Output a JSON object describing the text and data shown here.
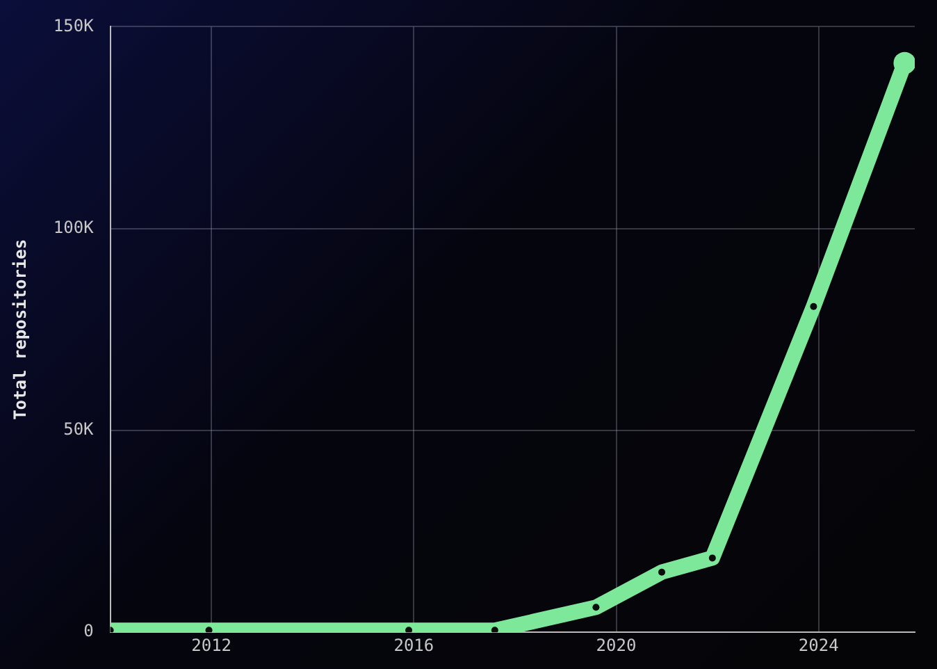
{
  "chart_data": {
    "type": "line",
    "ylabel": "Total repositories",
    "x": [
      2010,
      2011.95,
      2015.9,
      2017.6,
      2019.6,
      2020.9,
      2021.9,
      2023.9,
      2025.7
    ],
    "series": [
      {
        "color": "#7ee89a",
        "values": [
          500,
          500,
          500,
          500,
          6200,
          14900,
          18400,
          80700,
          141000
        ]
      }
    ],
    "xlim": [
      2010,
      2025.9
    ],
    "xticks": [
      2012,
      2016,
      2020,
      2024
    ],
    "ylim": [
      0,
      150000
    ],
    "yticks": [
      {
        "value": 0,
        "label": "0"
      },
      {
        "value": 50000,
        "label": "50K"
      },
      {
        "value": 100000,
        "label": "100K"
      },
      {
        "value": 150000,
        "label": "150K"
      }
    ],
    "grid": true,
    "legend": false,
    "marker": "circle",
    "line_style": "solid"
  }
}
